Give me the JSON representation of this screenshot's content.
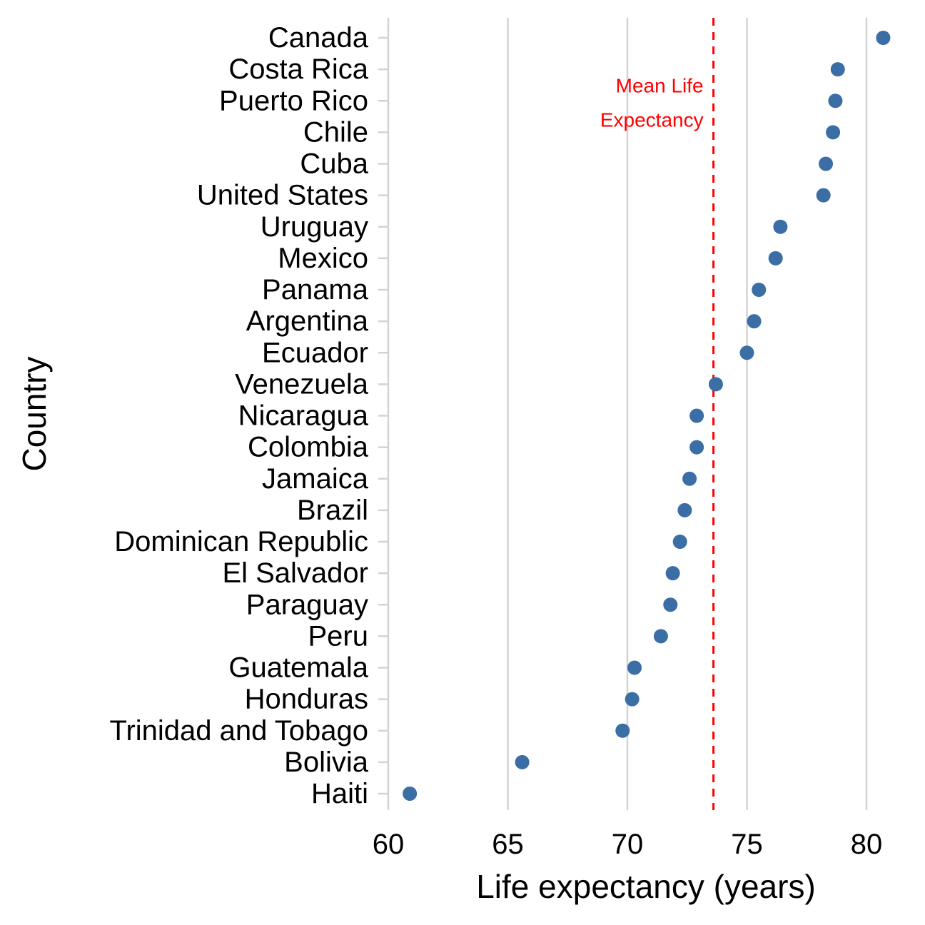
{
  "chart_data": {
    "type": "scatter",
    "xlabel": "Life expectancy (years)",
    "ylabel": "Country",
    "xlim": [
      60,
      80
    ],
    "x_ticks": [
      "60",
      "65",
      "70",
      "75",
      "80"
    ],
    "grid": "vertical major gridlines",
    "categories": [
      "Canada",
      "Costa Rica",
      "Puerto Rico",
      "Chile",
      "Cuba",
      "United States",
      "Uruguay",
      "Mexico",
      "Panama",
      "Argentina",
      "Ecuador",
      "Venezuela",
      "Nicaragua",
      "Colombia",
      "Jamaica",
      "Brazil",
      "Dominican Republic",
      "El Salvador",
      "Paraguay",
      "Peru",
      "Guatemala",
      "Honduras",
      "Trinidad and Tobago",
      "Bolivia",
      "Haiti"
    ],
    "values": [
      80.7,
      78.8,
      78.7,
      78.6,
      78.3,
      78.2,
      76.4,
      76.2,
      75.5,
      75.3,
      75.0,
      73.7,
      72.9,
      72.9,
      72.6,
      72.4,
      72.2,
      71.9,
      71.8,
      71.4,
      70.3,
      70.2,
      69.8,
      65.6,
      60.9
    ],
    "point_color": "#3a6ea5",
    "reference_line": {
      "value": 73.6,
      "label_lines": [
        "Mean Life",
        "Expectancy"
      ],
      "color": "#ff0000",
      "style": "dashed"
    }
  }
}
